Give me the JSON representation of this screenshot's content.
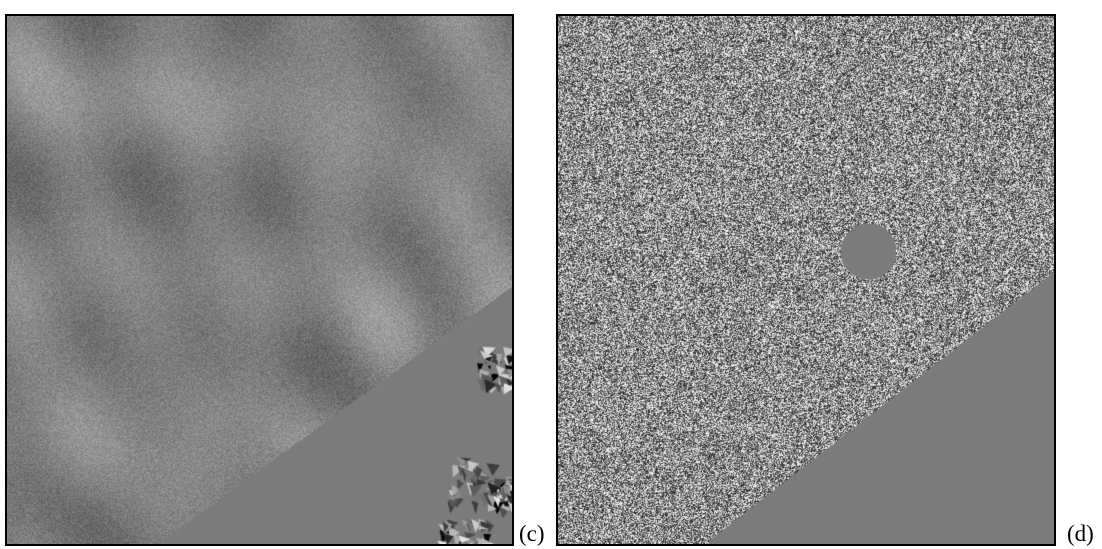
{
  "figure": {
    "panels": [
      {
        "id": "c",
        "label": "(c)",
        "content": "shaded-relief-terrain-with-flat-water-region"
      },
      {
        "id": "d",
        "label": "(d)",
        "content": "noise-texture-with-flat-water-region"
      }
    ],
    "colors": {
      "water": "#7b7b7b",
      "border": "#000000",
      "background": "#ffffff"
    }
  }
}
